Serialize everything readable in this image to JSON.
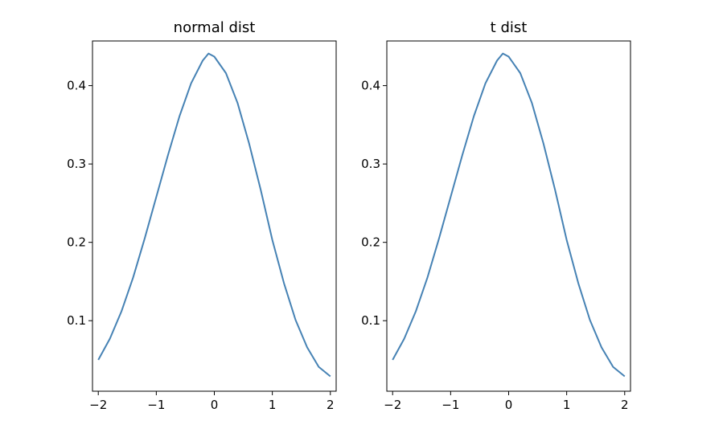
{
  "figure": {
    "background": "#ffffff"
  },
  "chart_data": [
    {
      "type": "line",
      "title": "normal dist",
      "xlabel": "",
      "ylabel": "",
      "xlim": [
        -2.1,
        2.1
      ],
      "ylim": [
        0.01,
        0.457
      ],
      "xticks": [
        -2,
        -1,
        0,
        1,
        2
      ],
      "xtick_labels": [
        "−2",
        "−1",
        "0",
        "1",
        "2"
      ],
      "yticks": [
        0.1,
        0.2,
        0.3,
        0.4
      ],
      "ytick_labels": [
        "0.1",
        "0.2",
        "0.3",
        "0.4"
      ],
      "grid": false,
      "series": [
        {
          "color": "#4682b4",
          "x": [
            -2.0,
            -1.8,
            -1.6,
            -1.4,
            -1.2,
            -1.0,
            -0.8,
            -0.6,
            -0.4,
            -0.2,
            -0.1,
            0.0,
            0.2,
            0.4,
            0.6,
            0.8,
            1.0,
            1.2,
            1.4,
            1.6,
            1.8,
            2.0
          ],
          "y": [
            0.05,
            0.077,
            0.112,
            0.155,
            0.205,
            0.258,
            0.311,
            0.361,
            0.403,
            0.432,
            0.441,
            0.437,
            0.416,
            0.378,
            0.326,
            0.267,
            0.203,
            0.148,
            0.101,
            0.066,
            0.041,
            0.029
          ]
        }
      ]
    },
    {
      "type": "line",
      "title": "t dist",
      "xlabel": "",
      "ylabel": "",
      "xlim": [
        -2.1,
        2.1
      ],
      "ylim": [
        0.01,
        0.457
      ],
      "xticks": [
        -2,
        -1,
        0,
        1,
        2
      ],
      "xtick_labels": [
        "−2",
        "−1",
        "0",
        "1",
        "2"
      ],
      "yticks": [
        0.1,
        0.2,
        0.3,
        0.4
      ],
      "ytick_labels": [
        "0.1",
        "0.2",
        "0.3",
        "0.4"
      ],
      "grid": false,
      "series": [
        {
          "color": "#4682b4",
          "x": [
            -2.0,
            -1.8,
            -1.6,
            -1.4,
            -1.2,
            -1.0,
            -0.8,
            -0.6,
            -0.4,
            -0.2,
            -0.1,
            0.0,
            0.2,
            0.4,
            0.6,
            0.8,
            1.0,
            1.2,
            1.4,
            1.6,
            1.8,
            2.0
          ],
          "y": [
            0.05,
            0.077,
            0.112,
            0.155,
            0.205,
            0.258,
            0.311,
            0.361,
            0.403,
            0.432,
            0.441,
            0.437,
            0.416,
            0.378,
            0.326,
            0.267,
            0.203,
            0.148,
            0.101,
            0.066,
            0.041,
            0.029
          ]
        }
      ]
    }
  ]
}
